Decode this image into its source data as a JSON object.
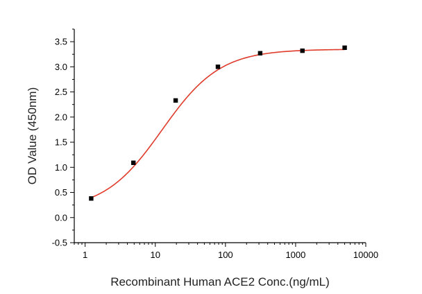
{
  "chart_data": {
    "type": "scatter",
    "title": "",
    "xlabel": "Recombinant Human ACE2 Conc.(ng/mL)",
    "ylabel": "OD Value (450nm)",
    "x_scale": "log",
    "xlim": [
      0.7,
      10000
    ],
    "ylim": [
      -0.5,
      3.75
    ],
    "x_ticks": [
      1,
      10,
      100,
      1000,
      10000
    ],
    "x_tick_labels": [
      "1",
      "10",
      "100",
      "1000",
      "10000"
    ],
    "y_ticks": [
      -0.5,
      0.0,
      0.5,
      1.0,
      1.5,
      2.0,
      2.5,
      3.0,
      3.5
    ],
    "y_tick_labels": [
      "-0.5",
      "0.0",
      "0.5",
      "1.0",
      "1.5",
      "2.0",
      "2.5",
      "3.0",
      "3.5"
    ],
    "grid": false,
    "legend": "none",
    "series": [
      {
        "x": [
          1.22,
          4.88,
          19.5,
          78.1,
          312.5,
          1250,
          5000
        ],
        "y": [
          0.38,
          1.09,
          2.33,
          3.0,
          3.27,
          3.32,
          3.38
        ],
        "marker": "square",
        "color": "#000000"
      }
    ],
    "fit_curve": {
      "model": "4PL",
      "bottom": 0.14,
      "top": 3.35,
      "ec50": 12.5,
      "hill": 1.05,
      "x_range": [
        1.22,
        5000
      ],
      "color": "#e03a2a"
    }
  }
}
